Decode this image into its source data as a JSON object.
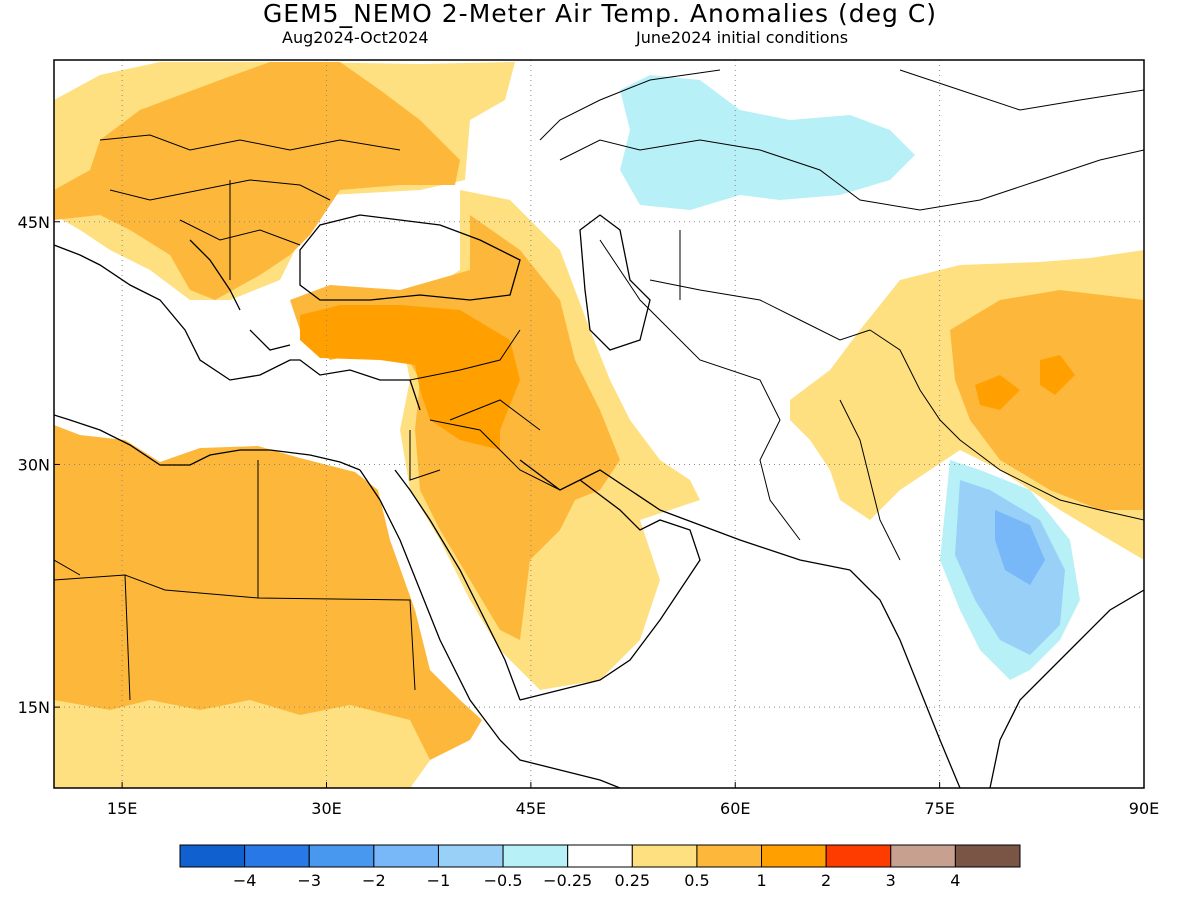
{
  "title": "GEM5_NEMO 2-Meter Air Temp. Anomalies (deg C)",
  "subtitle_left": "Aug2024-Oct2024",
  "subtitle_right": "June2024 initial conditions",
  "map": {
    "lon_range": [
      10,
      90
    ],
    "lat_range": [
      10,
      55
    ],
    "lon_ticks": [
      {
        "value": 15,
        "label": "15E"
      },
      {
        "value": 30,
        "label": "30E"
      },
      {
        "value": 45,
        "label": "45E"
      },
      {
        "value": 60,
        "label": "60E"
      },
      {
        "value": 75,
        "label": "75E"
      },
      {
        "value": 90,
        "label": "90E"
      }
    ],
    "lat_ticks": [
      {
        "value": 15,
        "label": "15N"
      },
      {
        "value": 30,
        "label": "30N"
      },
      {
        "value": 45,
        "label": "45N"
      }
    ],
    "grid": "dotted"
  },
  "colorbar": {
    "colors": [
      "#1060d0",
      "#2878e8",
      "#4898f0",
      "#78b8f8",
      "#98d0f8",
      "#b8f0f8",
      "#ffffff",
      "#fee080",
      "#fdb83c",
      "#ffa000",
      "#ff3c00",
      "#c8a090",
      "#7a5545"
    ],
    "labels": [
      "-4",
      "-3",
      "-2",
      "-1",
      "-0.5",
      "-0.25",
      "0.25",
      "0.5",
      "1",
      "2",
      "3",
      "4"
    ]
  },
  "anomaly_colors": {
    "light_warm": "#fee080",
    "warm": "#fdb83c",
    "orange": "#ffa000",
    "light_cool": "#b8f0f8",
    "cool": "#98d0f8",
    "blue": "#78b8f8"
  }
}
